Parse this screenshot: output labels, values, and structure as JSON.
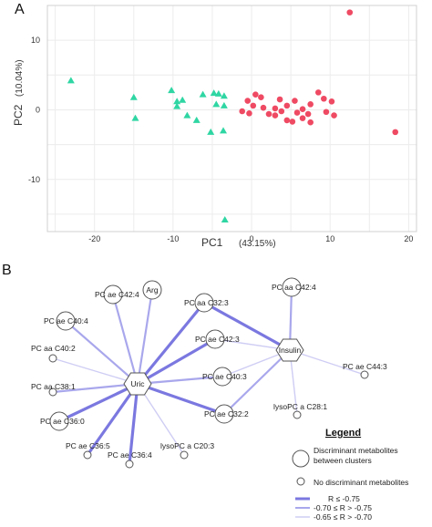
{
  "panel_a_label": "A",
  "panel_b_label": "B",
  "chart_data": [
    {
      "type": "scatter",
      "xlabel": "PC1",
      "xlabel_pct": "(43.15%)",
      "ylabel": "PC2",
      "ylabel_pct": "(10.04%)",
      "xlim": [
        -26,
        21
      ],
      "ylim": [
        -17.5,
        15
      ],
      "x_ticks": [
        -20,
        -10,
        0,
        10,
        20
      ],
      "y_ticks": [
        10,
        0,
        -10
      ],
      "grid": true,
      "series": [
        {
          "marker": "triangle",
          "color": "#2fd6a3",
          "points": [
            [
              -23,
              4.2
            ],
            [
              -15,
              1.8
            ],
            [
              -14.8,
              -1.2
            ],
            [
              -10.2,
              2.8
            ],
            [
              -9.5,
              1.2
            ],
            [
              -8.8,
              1.4
            ],
            [
              -9.5,
              0.5
            ],
            [
              -8.2,
              -0.8
            ],
            [
              -7,
              -1.5
            ],
            [
              -6.2,
              2.2
            ],
            [
              -4.8,
              2.4
            ],
            [
              -4.2,
              2.3
            ],
            [
              -3.5,
              2.0
            ],
            [
              -4.5,
              0.8
            ],
            [
              -3.5,
              0.6
            ],
            [
              -5.2,
              -3.2
            ],
            [
              -3.6,
              -3.0
            ],
            [
              -3.4,
              -15.8
            ]
          ]
        },
        {
          "marker": "circle",
          "color": "#ef4a63",
          "points": [
            [
              12.5,
              14
            ],
            [
              18.3,
              -3.2
            ],
            [
              -0.5,
              1.3
            ],
            [
              0.5,
              2.2
            ],
            [
              1.2,
              1.8
            ],
            [
              0.2,
              0.6
            ],
            [
              1.5,
              0.3
            ],
            [
              -0.3,
              -0.5
            ],
            [
              2.2,
              -0.6
            ],
            [
              3,
              -0.8
            ],
            [
              3.8,
              -0.2
            ],
            [
              3.6,
              1.5
            ],
            [
              4.5,
              0.6
            ],
            [
              5.5,
              1.3
            ],
            [
              5.8,
              -0.4
            ],
            [
              6.5,
              -1.2
            ],
            [
              7.2,
              -0.6
            ],
            [
              7.5,
              0.8
            ],
            [
              8.5,
              2.5
            ],
            [
              9.2,
              1.6
            ],
            [
              9.5,
              -0.3
            ],
            [
              10.2,
              1.2
            ],
            [
              10.5,
              -0.8
            ],
            [
              5.2,
              -1.7
            ],
            [
              4.5,
              -1.5
            ],
            [
              -1.2,
              -0.2
            ],
            [
              3,
              0.2
            ],
            [
              6.5,
              0.1
            ],
            [
              7.5,
              -1.8
            ]
          ]
        }
      ]
    },
    {
      "type": "network",
      "hubs": [
        {
          "id": "uric",
          "label": "Uric"
        },
        {
          "id": "insulin",
          "label": "Insulin"
        }
      ],
      "nodes": [
        {
          "id": "arg",
          "label": "Arg",
          "big": true
        },
        {
          "id": "pcaeC42_4",
          "label": "PC ae C42:4",
          "big": true
        },
        {
          "id": "pcaeC40_4",
          "label": "PC ae C40:4",
          "big": true
        },
        {
          "id": "pcaaC40_2",
          "label": "PC aa C40:2",
          "big": false
        },
        {
          "id": "pcaaC38_1",
          "label": "PC aa C38:1",
          "big": false
        },
        {
          "id": "pcaeC36_0",
          "label": "PC ae C36:0",
          "big": true
        },
        {
          "id": "pcaeC36_5",
          "label": "PC ae C36:5",
          "big": false
        },
        {
          "id": "pcaeC36_4",
          "label": "PC ae C36:4",
          "big": false
        },
        {
          "id": "lysoC20_3",
          "label": "lysoPC a C20:3",
          "big": false
        },
        {
          "id": "pcaaC32_3",
          "label": "PC aa C32:3",
          "big": true
        },
        {
          "id": "pcaeC42_3",
          "label": "PC ae C42:3",
          "big": true
        },
        {
          "id": "pcaeC40_3",
          "label": "PC ae C40:3",
          "big": true
        },
        {
          "id": "pcaeC32_2",
          "label": "PC ae C32:2",
          "big": true
        },
        {
          "id": "pcaaC42_4",
          "label": "PC aa C42:4",
          "big": true
        },
        {
          "id": "pcaeC44_3",
          "label": "PC ae C44:3",
          "big": false
        },
        {
          "id": "lysoC28_1",
          "label": "lysoPC a C28:1",
          "big": false
        }
      ],
      "edges": [
        {
          "from": "uric",
          "to": "arg",
          "strength": 2
        },
        {
          "from": "uric",
          "to": "pcaeC42_4",
          "strength": 2
        },
        {
          "from": "uric",
          "to": "pcaeC40_4",
          "strength": 2
        },
        {
          "from": "uric",
          "to": "pcaaC40_2",
          "strength": 3
        },
        {
          "from": "uric",
          "to": "pcaaC38_1",
          "strength": 2
        },
        {
          "from": "uric",
          "to": "pcaeC36_0",
          "strength": 1
        },
        {
          "from": "uric",
          "to": "pcaeC36_5",
          "strength": 1
        },
        {
          "from": "uric",
          "to": "pcaeC36_4",
          "strength": 1
        },
        {
          "from": "uric",
          "to": "lysoC20_3",
          "strength": 3
        },
        {
          "from": "uric",
          "to": "pcaaC32_3",
          "strength": 1
        },
        {
          "from": "uric",
          "to": "pcaeC42_3",
          "strength": 1
        },
        {
          "from": "uric",
          "to": "pcaeC40_3",
          "strength": 2
        },
        {
          "from": "uric",
          "to": "pcaeC32_2",
          "strength": 1
        },
        {
          "from": "insulin",
          "to": "pcaaC32_3",
          "strength": 1
        },
        {
          "from": "insulin",
          "to": "pcaeC42_3",
          "strength": 3
        },
        {
          "from": "insulin",
          "to": "pcaeC40_3",
          "strength": 3
        },
        {
          "from": "insulin",
          "to": "pcaeC32_2",
          "strength": 2
        },
        {
          "from": "insulin",
          "to": "pcaaC42_4",
          "strength": 2
        },
        {
          "from": "insulin",
          "to": "pcaeC44_3",
          "strength": 3
        },
        {
          "from": "insulin",
          "to": "lysoC28_1",
          "strength": 3
        }
      ],
      "edge_colors": {
        "1": "#7b78e0",
        "2": "#a9a7ec",
        "3": "#cfcdf4"
      },
      "legend": {
        "title": "Legend",
        "big_circle": "Discriminant metabolites between clusters",
        "big_circle_line1": "Discriminant metabolites",
        "big_circle_line2": "between clusters",
        "small_circle": "No discriminant metabolites",
        "r1": "R ≤ -0.75",
        "r2": "-0.70 ≤ R > -0.75",
        "r3": "-0.65 ≤ R > -0.70"
      }
    }
  ]
}
